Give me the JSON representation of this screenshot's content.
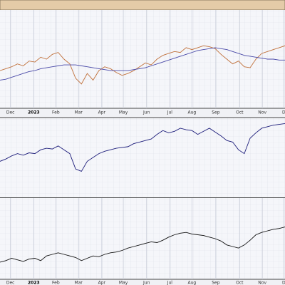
{
  "chart_data": [
    {
      "type": "line",
      "xlim": [
        0,
        49
      ],
      "ylim": [
        0,
        100
      ],
      "x": [
        0,
        1,
        2,
        3,
        4,
        5,
        6,
        7,
        8,
        9,
        10,
        11,
        12,
        13,
        14,
        15,
        16,
        17,
        18,
        19,
        20,
        21,
        22,
        23,
        24,
        25,
        26,
        27,
        28,
        29,
        30,
        31,
        32,
        33,
        34,
        35,
        36,
        37,
        38,
        39,
        40,
        41,
        42,
        43,
        44,
        45,
        46,
        47,
        48,
        49
      ],
      "xticks": [
        {
          "value": 1.8,
          "label": "Dec"
        },
        {
          "value": 5.8,
          "label": "2023"
        },
        {
          "value": 9.6,
          "label": "Feb"
        },
        {
          "value": 13.5,
          "label": "Mar"
        },
        {
          "value": 17.5,
          "label": "Apr"
        },
        {
          "value": 21.2,
          "label": "May"
        },
        {
          "value": 25.2,
          "label": "Jun"
        },
        {
          "value": 29.2,
          "label": "Jul"
        },
        {
          "value": 33,
          "label": "Aug"
        },
        {
          "value": 37.1,
          "label": "Sep"
        },
        {
          "value": 41.2,
          "label": "Oct"
        },
        {
          "value": 45.1,
          "label": "Nov"
        },
        {
          "value": 48.8,
          "label": "D"
        }
      ],
      "series": [
        {
          "color": "#c0703a",
          "values": [
            38,
            40,
            42,
            45,
            43,
            48,
            47,
            52,
            50,
            55,
            57,
            50,
            45,
            30,
            24,
            35,
            28,
            38,
            42,
            40,
            36,
            33,
            35,
            38,
            42,
            46,
            44,
            50,
            54,
            56,
            58,
            57,
            62,
            60,
            62,
            64,
            63,
            61,
            55,
            50,
            45,
            48,
            42,
            41,
            50,
            56,
            58,
            60,
            62,
            64
          ]
        },
        {
          "color": "#4a4aa8",
          "values": [
            28,
            29,
            31,
            33,
            35,
            37,
            38,
            40,
            41,
            42,
            43,
            44,
            44,
            44,
            43,
            42,
            41,
            40,
            39,
            38,
            38,
            38,
            38,
            39,
            40,
            41,
            43,
            45,
            47,
            49,
            51,
            53,
            55,
            57,
            59,
            60,
            61,
            62,
            61,
            60,
            58,
            56,
            54,
            53,
            52,
            51,
            50,
            50,
            49,
            49
          ]
        }
      ]
    },
    {
      "type": "line",
      "xlim": [
        0,
        49
      ],
      "ylim": [
        0,
        100
      ],
      "x": [
        0,
        1,
        2,
        3,
        4,
        5,
        6,
        7,
        8,
        9,
        10,
        11,
        12,
        13,
        14,
        15,
        16,
        17,
        18,
        19,
        20,
        21,
        22,
        23,
        24,
        25,
        26,
        27,
        28,
        29,
        30,
        31,
        32,
        33,
        34,
        35,
        36,
        37,
        38,
        39,
        40,
        41,
        42,
        43,
        44,
        45,
        46,
        47,
        48,
        49
      ],
      "series": [
        {
          "color": "#1c1c7a",
          "values": [
            45,
            48,
            52,
            55,
            53,
            56,
            55,
            60,
            62,
            61,
            65,
            60,
            55,
            35,
            32,
            45,
            50,
            55,
            58,
            60,
            62,
            63,
            64,
            68,
            70,
            72,
            74,
            80,
            85,
            82,
            84,
            88,
            86,
            85,
            80,
            84,
            88,
            83,
            78,
            72,
            70,
            60,
            55,
            75,
            82,
            88,
            90,
            92,
            93,
            94
          ]
        }
      ]
    },
    {
      "type": "line",
      "xlim": [
        0,
        49
      ],
      "ylim": [
        0,
        100
      ],
      "x": [
        0,
        1,
        2,
        3,
        4,
        5,
        6,
        7,
        8,
        9,
        10,
        11,
        12,
        13,
        14,
        15,
        16,
        17,
        18,
        19,
        20,
        21,
        22,
        23,
        24,
        25,
        26,
        27,
        28,
        29,
        30,
        31,
        32,
        33,
        34,
        35,
        36,
        37,
        38,
        39,
        40,
        41,
        42,
        43,
        44,
        45,
        46,
        47,
        48,
        49
      ],
      "xticks": [
        {
          "value": 1.8,
          "label": "Dec"
        },
        {
          "value": 5.8,
          "label": "2023"
        },
        {
          "value": 9.6,
          "label": "Feb"
        },
        {
          "value": 13.5,
          "label": "Mar"
        },
        {
          "value": 17.5,
          "label": "Apr"
        },
        {
          "value": 21.2,
          "label": "May"
        },
        {
          "value": 25.2,
          "label": "Jun"
        },
        {
          "value": 29.2,
          "label": "Jul"
        },
        {
          "value": 33,
          "label": "Aug"
        },
        {
          "value": 37.1,
          "label": "Sep"
        },
        {
          "value": 41.2,
          "label": "Oct"
        },
        {
          "value": 45.1,
          "label": "Nov"
        },
        {
          "value": 48.8,
          "label": "D"
        }
      ],
      "series": [
        {
          "color": "#111111",
          "values": [
            20,
            22,
            25,
            23,
            21,
            24,
            25,
            22,
            28,
            30,
            32,
            30,
            28,
            26,
            22,
            25,
            28,
            27,
            30,
            32,
            33,
            35,
            38,
            40,
            42,
            44,
            46,
            45,
            48,
            52,
            55,
            57,
            58,
            56,
            55,
            54,
            52,
            50,
            47,
            42,
            40,
            38,
            42,
            48,
            55,
            58,
            60,
            62,
            63,
            65
          ]
        }
      ]
    }
  ]
}
